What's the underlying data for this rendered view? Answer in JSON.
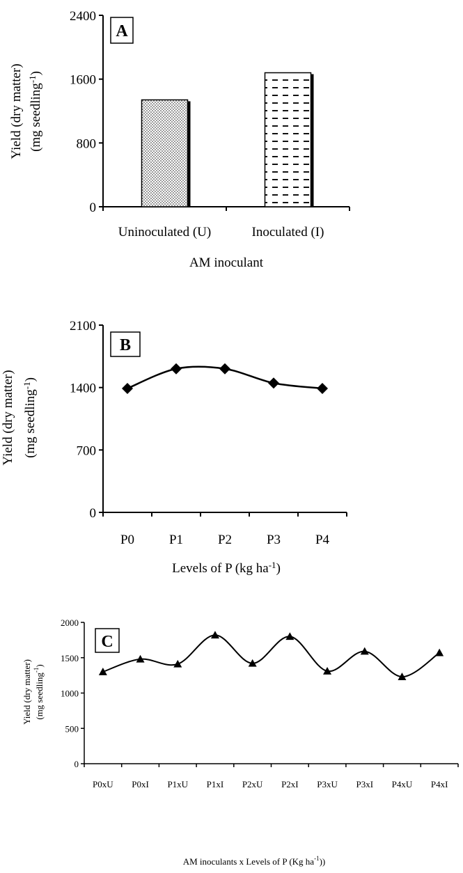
{
  "chart_data": [
    {
      "type": "bar",
      "panel_label": "A",
      "categories": [
        "Uninoculated (U)",
        "Inoculated (I)"
      ],
      "values": [
        1340,
        1680
      ],
      "ylabel_line1": "Yield (dry matter)",
      "ylabel_line2_base": "(mg seedling",
      "ylabel_line2_sup": "-1",
      "ylabel_line2_end": ")",
      "xlabel": "AM inoculant",
      "ylim": [
        0,
        2400
      ],
      "yticks": [
        0,
        800,
        1600,
        2400
      ],
      "patterns": [
        "dots",
        "dashes"
      ]
    },
    {
      "type": "line",
      "panel_label": "B",
      "categories": [
        "P0",
        "P1",
        "P2",
        "P3",
        "P4"
      ],
      "values": [
        1390,
        1610,
        1610,
        1450,
        1390
      ],
      "marker": "diamond",
      "ylabel_line1": "Yield (dry matter)",
      "ylabel_line2_base": "(mg seedling",
      "ylabel_line2_sup": "-1",
      "ylabel_line2_end": ")",
      "xlabel_base": "Levels of P (kg ha",
      "xlabel_sup": "-1",
      "xlabel_end": ")",
      "ylim": [
        0,
        2100
      ],
      "yticks": [
        0,
        700,
        1400,
        2100
      ]
    },
    {
      "type": "line",
      "panel_label": "C",
      "categories": [
        "P0xU",
        "P0xI",
        "P1xU",
        "P1xI",
        "P2xU",
        "P2xI",
        "P3xU",
        "P3xI",
        "P4xU",
        "P4xI"
      ],
      "values": [
        1300,
        1480,
        1410,
        1820,
        1420,
        1800,
        1310,
        1590,
        1230,
        1570
      ],
      "marker": "triangle",
      "ylabel_line1": "Yield (dry matter)",
      "ylabel_line2_base": "(mg seedling",
      "ylabel_line2_sup": "-1",
      "ylabel_line2_end": ")",
      "xlabel_base": "AM inoculants x Levels of P (Kg ha",
      "xlabel_sup": "-1",
      "xlabel_end": "))",
      "ylim": [
        0,
        2000
      ],
      "yticks": [
        0,
        500,
        1000,
        1500,
        2000
      ]
    }
  ]
}
